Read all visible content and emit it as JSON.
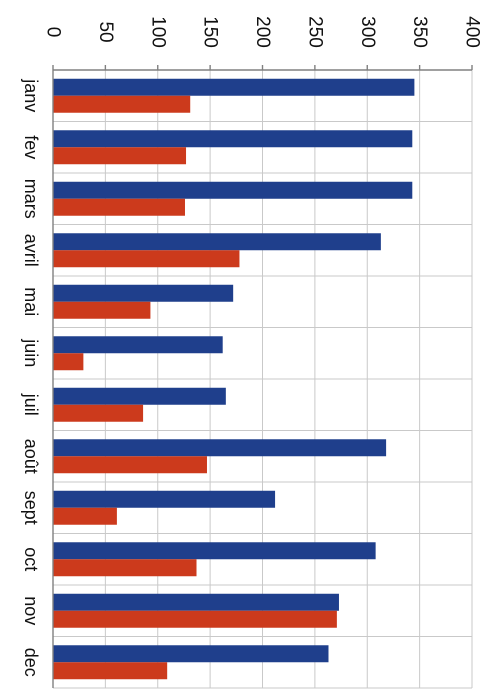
{
  "chart_data": {
    "type": "bar",
    "orientation": "rotated-90-clockwise",
    "categories": [
      "janv",
      "fev",
      "mars",
      "avril",
      "mai",
      "juin",
      "juil",
      "août",
      "sept",
      "oct",
      "nov",
      "dec"
    ],
    "series": [
      {
        "color": "#1f3f8c",
        "values": [
          345,
          343,
          343,
          313,
          172,
          162,
          165,
          318,
          212,
          308,
          273,
          263
        ]
      },
      {
        "color": "#cc3a1c",
        "values": [
          131,
          127,
          126,
          178,
          93,
          29,
          86,
          147,
          61,
          137,
          271,
          109
        ]
      }
    ],
    "ylim": [
      0,
      400
    ],
    "yticks": [
      0,
      50,
      100,
      150,
      200,
      250,
      300,
      350,
      400
    ],
    "grid": true,
    "title": "",
    "xlabel": "",
    "ylabel": ""
  }
}
